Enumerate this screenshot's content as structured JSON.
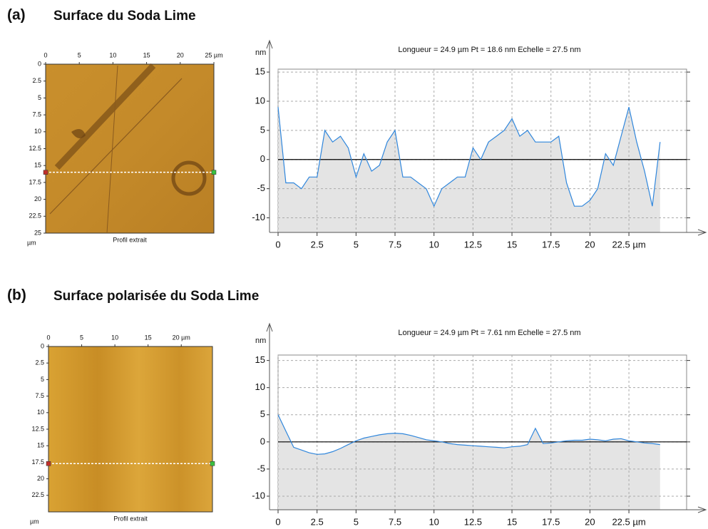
{
  "panels": [
    {
      "label": "(a)",
      "heading": "Surface du Soda Lime",
      "image": {
        "caption": "Profil extrait",
        "unit": "µm",
        "xlim": [
          0,
          25
        ],
        "ylim": [
          0,
          25
        ],
        "xticks": [
          0,
          5,
          10,
          15,
          20,
          {
            "value": 25,
            "label": "25 µm"
          }
        ],
        "yticks": [
          0,
          2.5,
          5,
          7.5,
          10,
          12.5,
          15,
          17.5,
          20,
          22.5,
          25
        ],
        "profile_y": 16
      }
    },
    {
      "label": "(b)",
      "heading": "Surface polarisée du Soda Lime",
      "image": {
        "caption": "Profil extrait",
        "unit": "µm",
        "xlim": [
          0,
          24.7
        ],
        "ylim": [
          0,
          25
        ],
        "xticks": [
          0,
          5,
          10,
          15,
          {
            "value": 20,
            "label": "20 µm"
          }
        ],
        "yticks": [
          0,
          2.5,
          5,
          7.5,
          10,
          12.5,
          15,
          17.5,
          20,
          22.5
        ],
        "profile_y": 17.7
      }
    }
  ],
  "chart_data": [
    {
      "type": "line",
      "title": "Longueur = 24.9 µm  Pt = 18.6 nm  Echelle = 27.5 nm",
      "ylabel": "nm",
      "xlim": [
        0,
        26.2
      ],
      "ylim": [
        -12.5,
        15.5
      ],
      "xticks": [
        0,
        2.5,
        5,
        7.5,
        10,
        12.5,
        15,
        17.5,
        20,
        {
          "value": 22.5,
          "label": "22.5 µm"
        }
      ],
      "yticks": [
        -10,
        -5,
        0,
        5,
        10,
        15
      ],
      "grid": true,
      "baseline": 0,
      "area_color": "#e4e4e4",
      "x": [
        0,
        0.5,
        1,
        1.5,
        2,
        2.5,
        3,
        3.5,
        4,
        4.5,
        5,
        5.5,
        6,
        6.5,
        7,
        7.5,
        8,
        8.5,
        9,
        9.5,
        10,
        10.5,
        11,
        11.5,
        12,
        12.5,
        13,
        13.5,
        14,
        14.5,
        15,
        15.5,
        16,
        16.5,
        17,
        17.5,
        18,
        18.5,
        19,
        19.5,
        20,
        20.5,
        21,
        21.5,
        22,
        22.5,
        23,
        23.5,
        24,
        24.5
      ],
      "series": [
        {
          "color": "#2f86dc",
          "values": [
            9,
            -4,
            -4,
            -5,
            -3,
            -3,
            5,
            3,
            4,
            2,
            -3,
            1,
            -2,
            -1,
            3,
            5,
            -3,
            -3,
            -4,
            -5,
            -8,
            -5,
            -4,
            -3,
            -3,
            2,
            0,
            3,
            4,
            5,
            7,
            4,
            5,
            3,
            3,
            3,
            4,
            -4,
            -8,
            -8,
            -7,
            -5,
            1,
            -1,
            4,
            9,
            3,
            -2,
            -8,
            3
          ]
        }
      ]
    },
    {
      "type": "line",
      "title": "Longueur = 24.9 µm  Pt = 7.61 nm  Echelle = 27.5 nm",
      "ylabel": "nm",
      "xlim": [
        0,
        26.2
      ],
      "ylim": [
        -12.5,
        16
      ],
      "xticks": [
        0,
        2.5,
        5,
        7.5,
        10,
        12.5,
        15,
        17.5,
        20,
        {
          "value": 22.5,
          "label": "22.5 µm"
        }
      ],
      "yticks": [
        -10,
        -5,
        0,
        5,
        10,
        15
      ],
      "grid": true,
      "baseline": 0,
      "area_color": "#e4e4e4",
      "x": [
        0,
        0.5,
        1,
        1.5,
        2,
        2.5,
        3,
        3.5,
        4,
        4.5,
        5,
        5.5,
        6,
        6.5,
        7,
        7.5,
        8,
        8.5,
        9,
        9.5,
        10,
        10.5,
        11,
        11.5,
        12,
        12.5,
        13,
        13.5,
        14,
        14.5,
        15,
        15.5,
        16,
        16.5,
        17,
        17.5,
        18,
        18.5,
        19,
        19.5,
        20,
        20.5,
        21,
        21.5,
        22,
        22.5,
        23,
        23.5,
        24,
        24.5
      ],
      "series": [
        {
          "color": "#2f86dc",
          "values": [
            5,
            2,
            -1,
            -1.5,
            -2,
            -2.3,
            -2.2,
            -1.8,
            -1.2,
            -0.5,
            0.2,
            0.7,
            1,
            1.3,
            1.5,
            1.6,
            1.5,
            1.2,
            0.8,
            0.4,
            0.2,
            0,
            -0.3,
            -0.5,
            -0.6,
            -0.7,
            -0.8,
            -0.9,
            -1,
            -1.1,
            -0.9,
            -0.8,
            -0.5,
            2.5,
            -0.3,
            -0.2,
            0,
            0.2,
            0.3,
            0.3,
            0.5,
            0.4,
            0.2,
            0.5,
            0.6,
            0.2,
            0,
            -0.2,
            -0.3,
            -0.5
          ]
        }
      ]
    }
  ]
}
